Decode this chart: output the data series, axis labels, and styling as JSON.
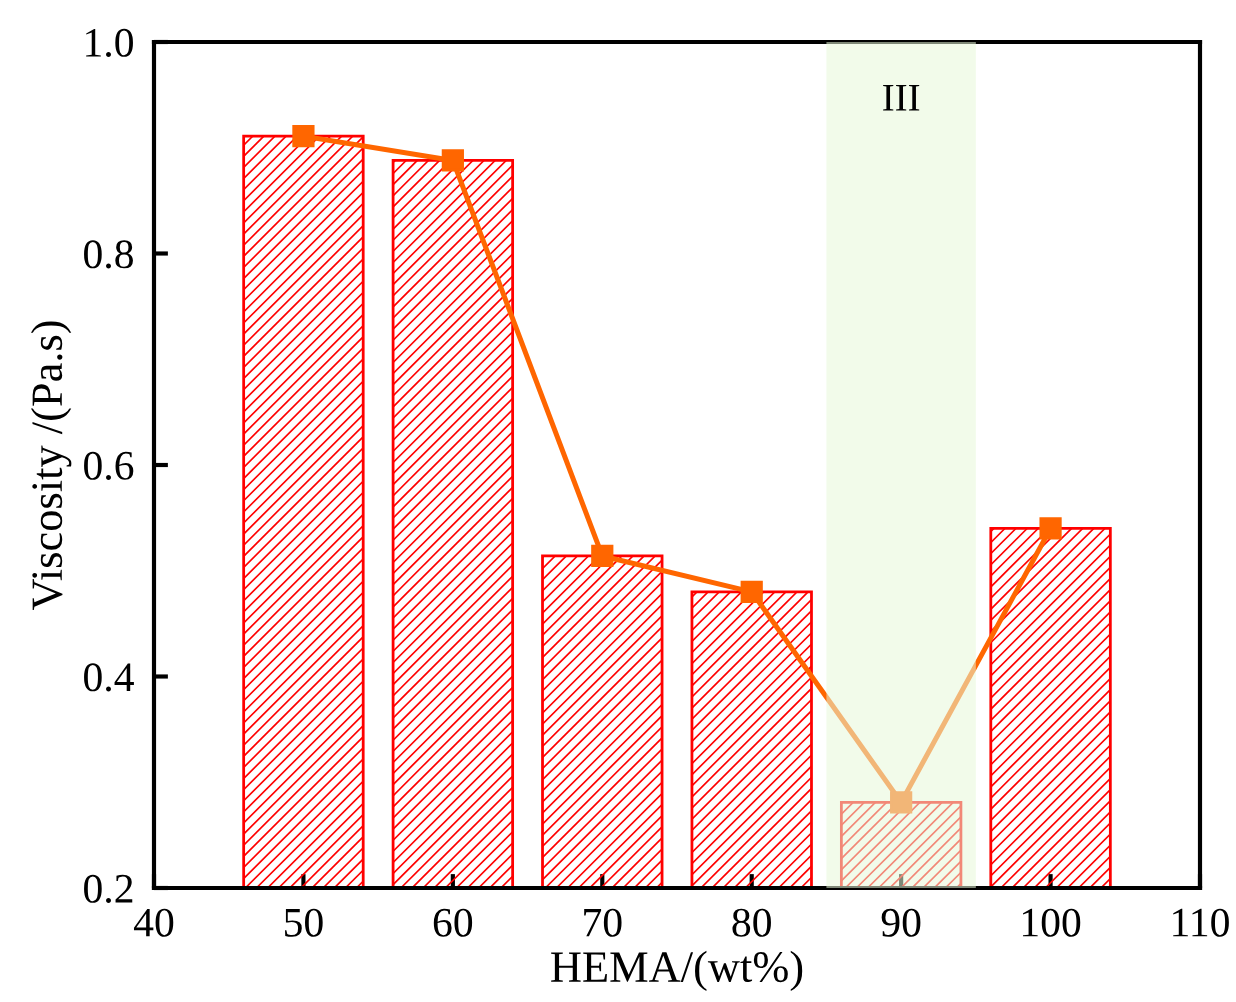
{
  "chart_data": {
    "type": "bar",
    "xlabel": "HEMA/(wt%)",
    "ylabel": "Viscosity /(Pa.s)",
    "x": [
      50,
      60,
      70,
      80,
      90,
      100
    ],
    "series": [
      {
        "color": "#ff0000",
        "values": [
          0.911,
          0.888,
          0.514,
          0.48,
          0.281,
          0.54
        ]
      },
      {
        "type": "line",
        "color": "#ff6600",
        "values": [
          0.911,
          0.888,
          0.514,
          0.48,
          0.281,
          0.54
        ]
      }
    ],
    "bands": [
      {
        "axis": "x",
        "from": 85,
        "to": 95,
        "label": "III",
        "color": "#e8f7d8"
      }
    ],
    "xlim": [
      40,
      110
    ],
    "xticks": [
      40,
      50,
      60,
      70,
      80,
      90,
      100,
      110
    ],
    "ylim": [
      0.2,
      1.0
    ],
    "yticks": [
      0.2,
      0.4,
      0.6,
      0.8,
      {
        "value": 1,
        "label": "1.0"
      }
    ],
    "marker": "square",
    "line_style": "solid",
    "grid": false,
    "legend": false
  }
}
